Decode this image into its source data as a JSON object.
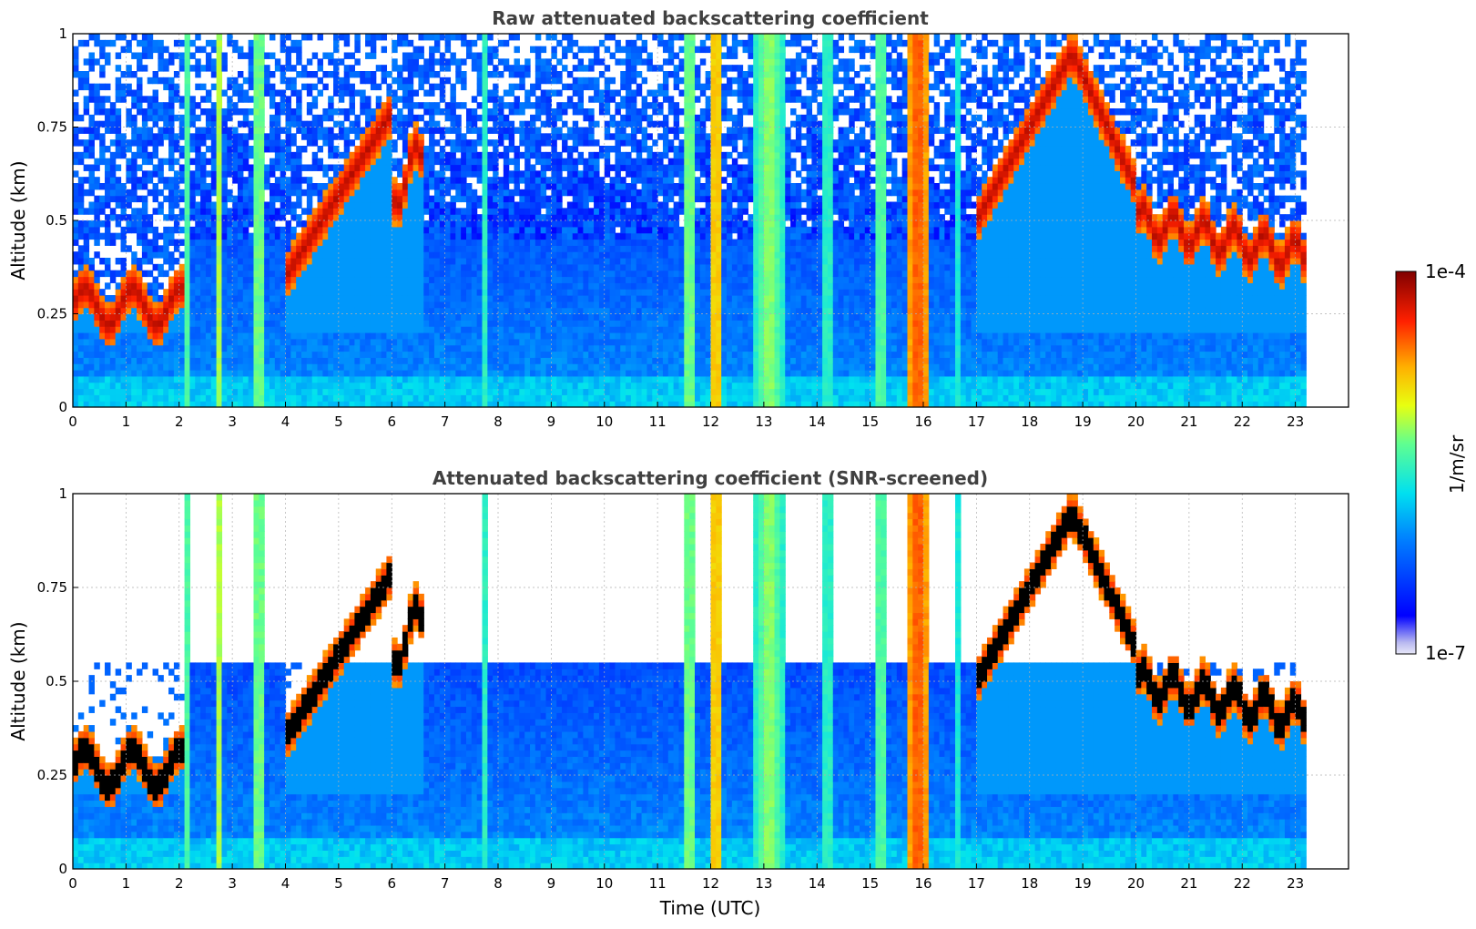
{
  "chart_data": [
    {
      "type": "heatmap",
      "title": "Raw attenuated backscattering coefficient",
      "ylabel": "Altitude (km)",
      "xlabel": "",
      "xlim": [
        0,
        24
      ],
      "ylim": [
        0,
        1
      ],
      "xticks": [
        "0",
        "1",
        "2",
        "3",
        "4",
        "5",
        "6",
        "7",
        "8",
        "9",
        "10",
        "11",
        "12",
        "13",
        "14",
        "15",
        "16",
        "17",
        "18",
        "19",
        "20",
        "21",
        "22",
        "23"
      ],
      "yticks": [
        "0",
        "0.25",
        "0.5",
        "0.75",
        "1"
      ],
      "data_end_time": 23.2,
      "grid": true,
      "screened": false
    },
    {
      "type": "heatmap",
      "title": "Attenuated backscattering coefficient (SNR-screened)",
      "ylabel": "Altitude (km)",
      "xlabel": "Time (UTC)",
      "xlim": [
        0,
        24
      ],
      "ylim": [
        0,
        1
      ],
      "xticks": [
        "0",
        "1",
        "2",
        "3",
        "4",
        "5",
        "6",
        "7",
        "8",
        "9",
        "10",
        "11",
        "12",
        "13",
        "14",
        "15",
        "16",
        "17",
        "18",
        "19",
        "20",
        "21",
        "22",
        "23"
      ],
      "yticks": [
        "0",
        "0.25",
        "0.5",
        "0.75",
        "1"
      ],
      "data_end_time": 23.2,
      "grid": true,
      "screened": true
    }
  ],
  "colorbar": {
    "label": "1/m/sr",
    "min_label": "1e-7",
    "max_label": "1e-4",
    "scale": "log",
    "colormap": "jet"
  },
  "colors": {
    "background_missing": "#ffffff",
    "saturated_screened": "#000000",
    "gridline": "#b0b0b0"
  }
}
